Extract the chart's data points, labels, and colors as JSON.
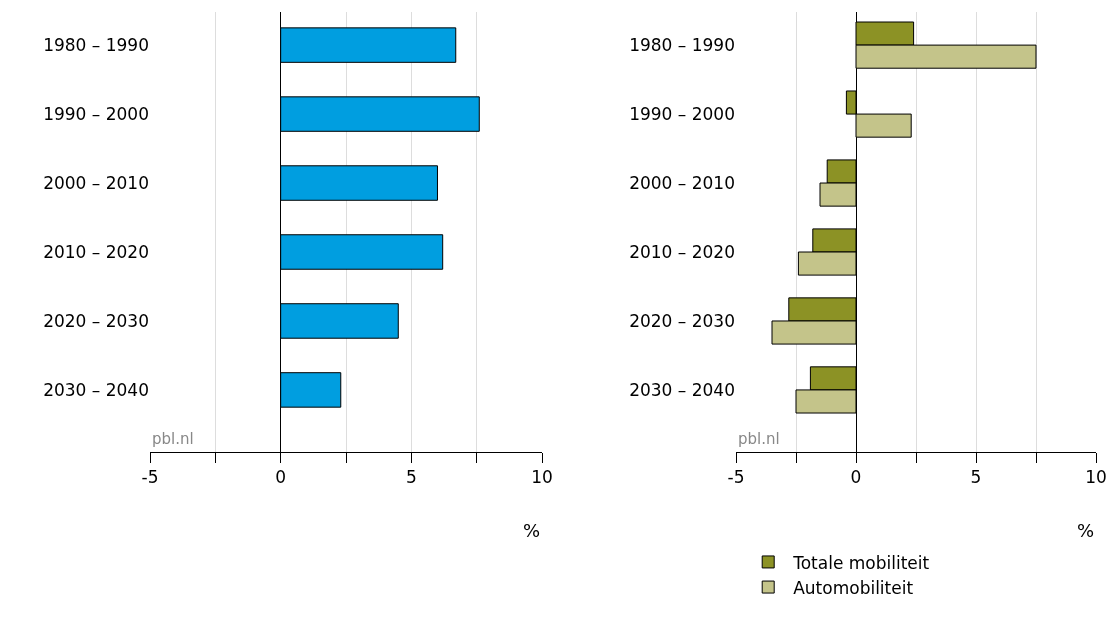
{
  "chart_data": [
    {
      "type": "bar",
      "orientation": "horizontal",
      "categories": [
        "1980 – 1990",
        "1990 – 2000",
        "2000 – 2010",
        "2010 – 2020",
        "2020 – 2030",
        "2030 – 2040"
      ],
      "values": [
        6.7,
        7.6,
        6.0,
        6.2,
        4.5,
        2.3
      ],
      "color": "#009ee0",
      "xlim": [
        -5,
        10
      ],
      "xticks": [
        -5,
        {
          "value": -2.5,
          "label": null
        },
        0,
        {
          "value": 2.5,
          "label": null
        },
        5,
        {
          "value": 7.5,
          "label": null
        },
        10
      ],
      "grid": "x",
      "xlabel": "%",
      "annotations": [
        "pbl.nl"
      ]
    },
    {
      "type": "bar",
      "orientation": "horizontal",
      "categories": [
        "1980 – 1990",
        "1990 – 2000",
        "2000 – 2010",
        "2010 – 2020",
        "2020 – 2030",
        "2030 – 2040"
      ],
      "series": [
        {
          "name": "Totale mobiliteit",
          "color": "#8c9225",
          "values": [
            2.4,
            -0.4,
            -1.2,
            -1.8,
            -2.8,
            -1.9
          ]
        },
        {
          "name": "Automobiliteit",
          "color": "#c4c48a",
          "values": [
            7.5,
            2.3,
            -1.5,
            -2.4,
            -3.5,
            -2.5
          ]
        }
      ],
      "xlim": [
        -5,
        10
      ],
      "xticks": [
        -5,
        {
          "value": -2.5,
          "label": null
        },
        0,
        {
          "value": 2.5,
          "label": null
        },
        5,
        {
          "value": 7.5,
          "label": null
        },
        10
      ],
      "grid": "x",
      "xlabel": "%",
      "annotations": [
        "pbl.nl"
      ],
      "legend": "bottom"
    }
  ]
}
